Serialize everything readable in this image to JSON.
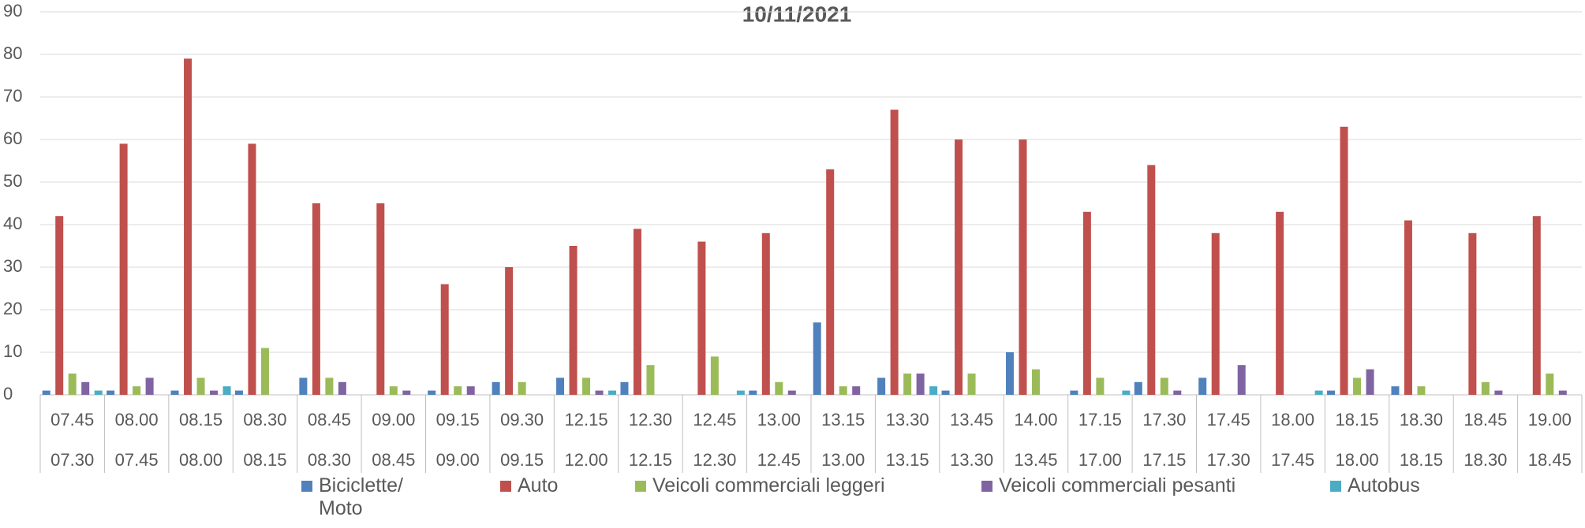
{
  "chart_data": {
    "type": "bar",
    "title": "10/11/2021",
    "categories": [
      [
        "07.45",
        "07.30"
      ],
      [
        "08.00",
        "07.45"
      ],
      [
        "08.15",
        "08.00"
      ],
      [
        "08.30",
        "08.15"
      ],
      [
        "08.45",
        "08.30"
      ],
      [
        "09.00",
        "08.45"
      ],
      [
        "09.15",
        "09.00"
      ],
      [
        "09.30",
        "09.15"
      ],
      [
        "12.15",
        "12.00"
      ],
      [
        "12.30",
        "12.15"
      ],
      [
        "12.45",
        "12.30"
      ],
      [
        "13.00",
        "12.45"
      ],
      [
        "13.15",
        "13.00"
      ],
      [
        "13.30",
        "13.15"
      ],
      [
        "13.45",
        "13.30"
      ],
      [
        "14.00",
        "13.45"
      ],
      [
        "17.15",
        "17.00"
      ],
      [
        "17.30",
        "17.15"
      ],
      [
        "17.45",
        "17.30"
      ],
      [
        "18.00",
        "17.45"
      ],
      [
        "18.15",
        "18.00"
      ],
      [
        "18.30",
        "18.15"
      ],
      [
        "18.45",
        "18.30"
      ],
      [
        "19.00",
        "18.45"
      ]
    ],
    "series": [
      {
        "name": "Biciclette/ Moto",
        "color": "#4f81bd",
        "values": [
          1,
          1,
          1,
          1,
          4,
          0,
          1,
          3,
          4,
          3,
          0,
          1,
          17,
          4,
          1,
          10,
          1,
          3,
          4,
          0,
          1,
          2,
          0,
          0
        ]
      },
      {
        "name": "Auto",
        "color": "#c0504d",
        "values": [
          42,
          59,
          79,
          59,
          45,
          45,
          26,
          30,
          35,
          39,
          36,
          38,
          53,
          67,
          60,
          60,
          43,
          54,
          38,
          43,
          63,
          41,
          38,
          42
        ]
      },
      {
        "name": "Veicoli commerciali leggeri",
        "color": "#9bbb59",
        "values": [
          5,
          2,
          4,
          11,
          4,
          2,
          2,
          3,
          4,
          7,
          9,
          3,
          2,
          5,
          5,
          6,
          4,
          4,
          0,
          0,
          4,
          2,
          3,
          5
        ]
      },
      {
        "name": "Veicoli commerciali pesanti",
        "color": "#8064a2",
        "values": [
          3,
          4,
          1,
          0,
          3,
          1,
          2,
          0,
          1,
          0,
          0,
          1,
          2,
          5,
          0,
          0,
          0,
          1,
          7,
          0,
          6,
          0,
          1,
          1
        ]
      },
      {
        "name": "Autobus",
        "color": "#4bacc6",
        "values": [
          1,
          0,
          2,
          0,
          0,
          0,
          0,
          0,
          1,
          0,
          1,
          0,
          0,
          2,
          0,
          0,
          1,
          0,
          0,
          1,
          0,
          0,
          0,
          0
        ]
      }
    ],
    "ylim": [
      0,
      90
    ],
    "yticks": [
      0,
      10,
      20,
      30,
      40,
      50,
      60,
      70,
      80,
      90
    ],
    "grid": true,
    "legend": "bottom"
  }
}
